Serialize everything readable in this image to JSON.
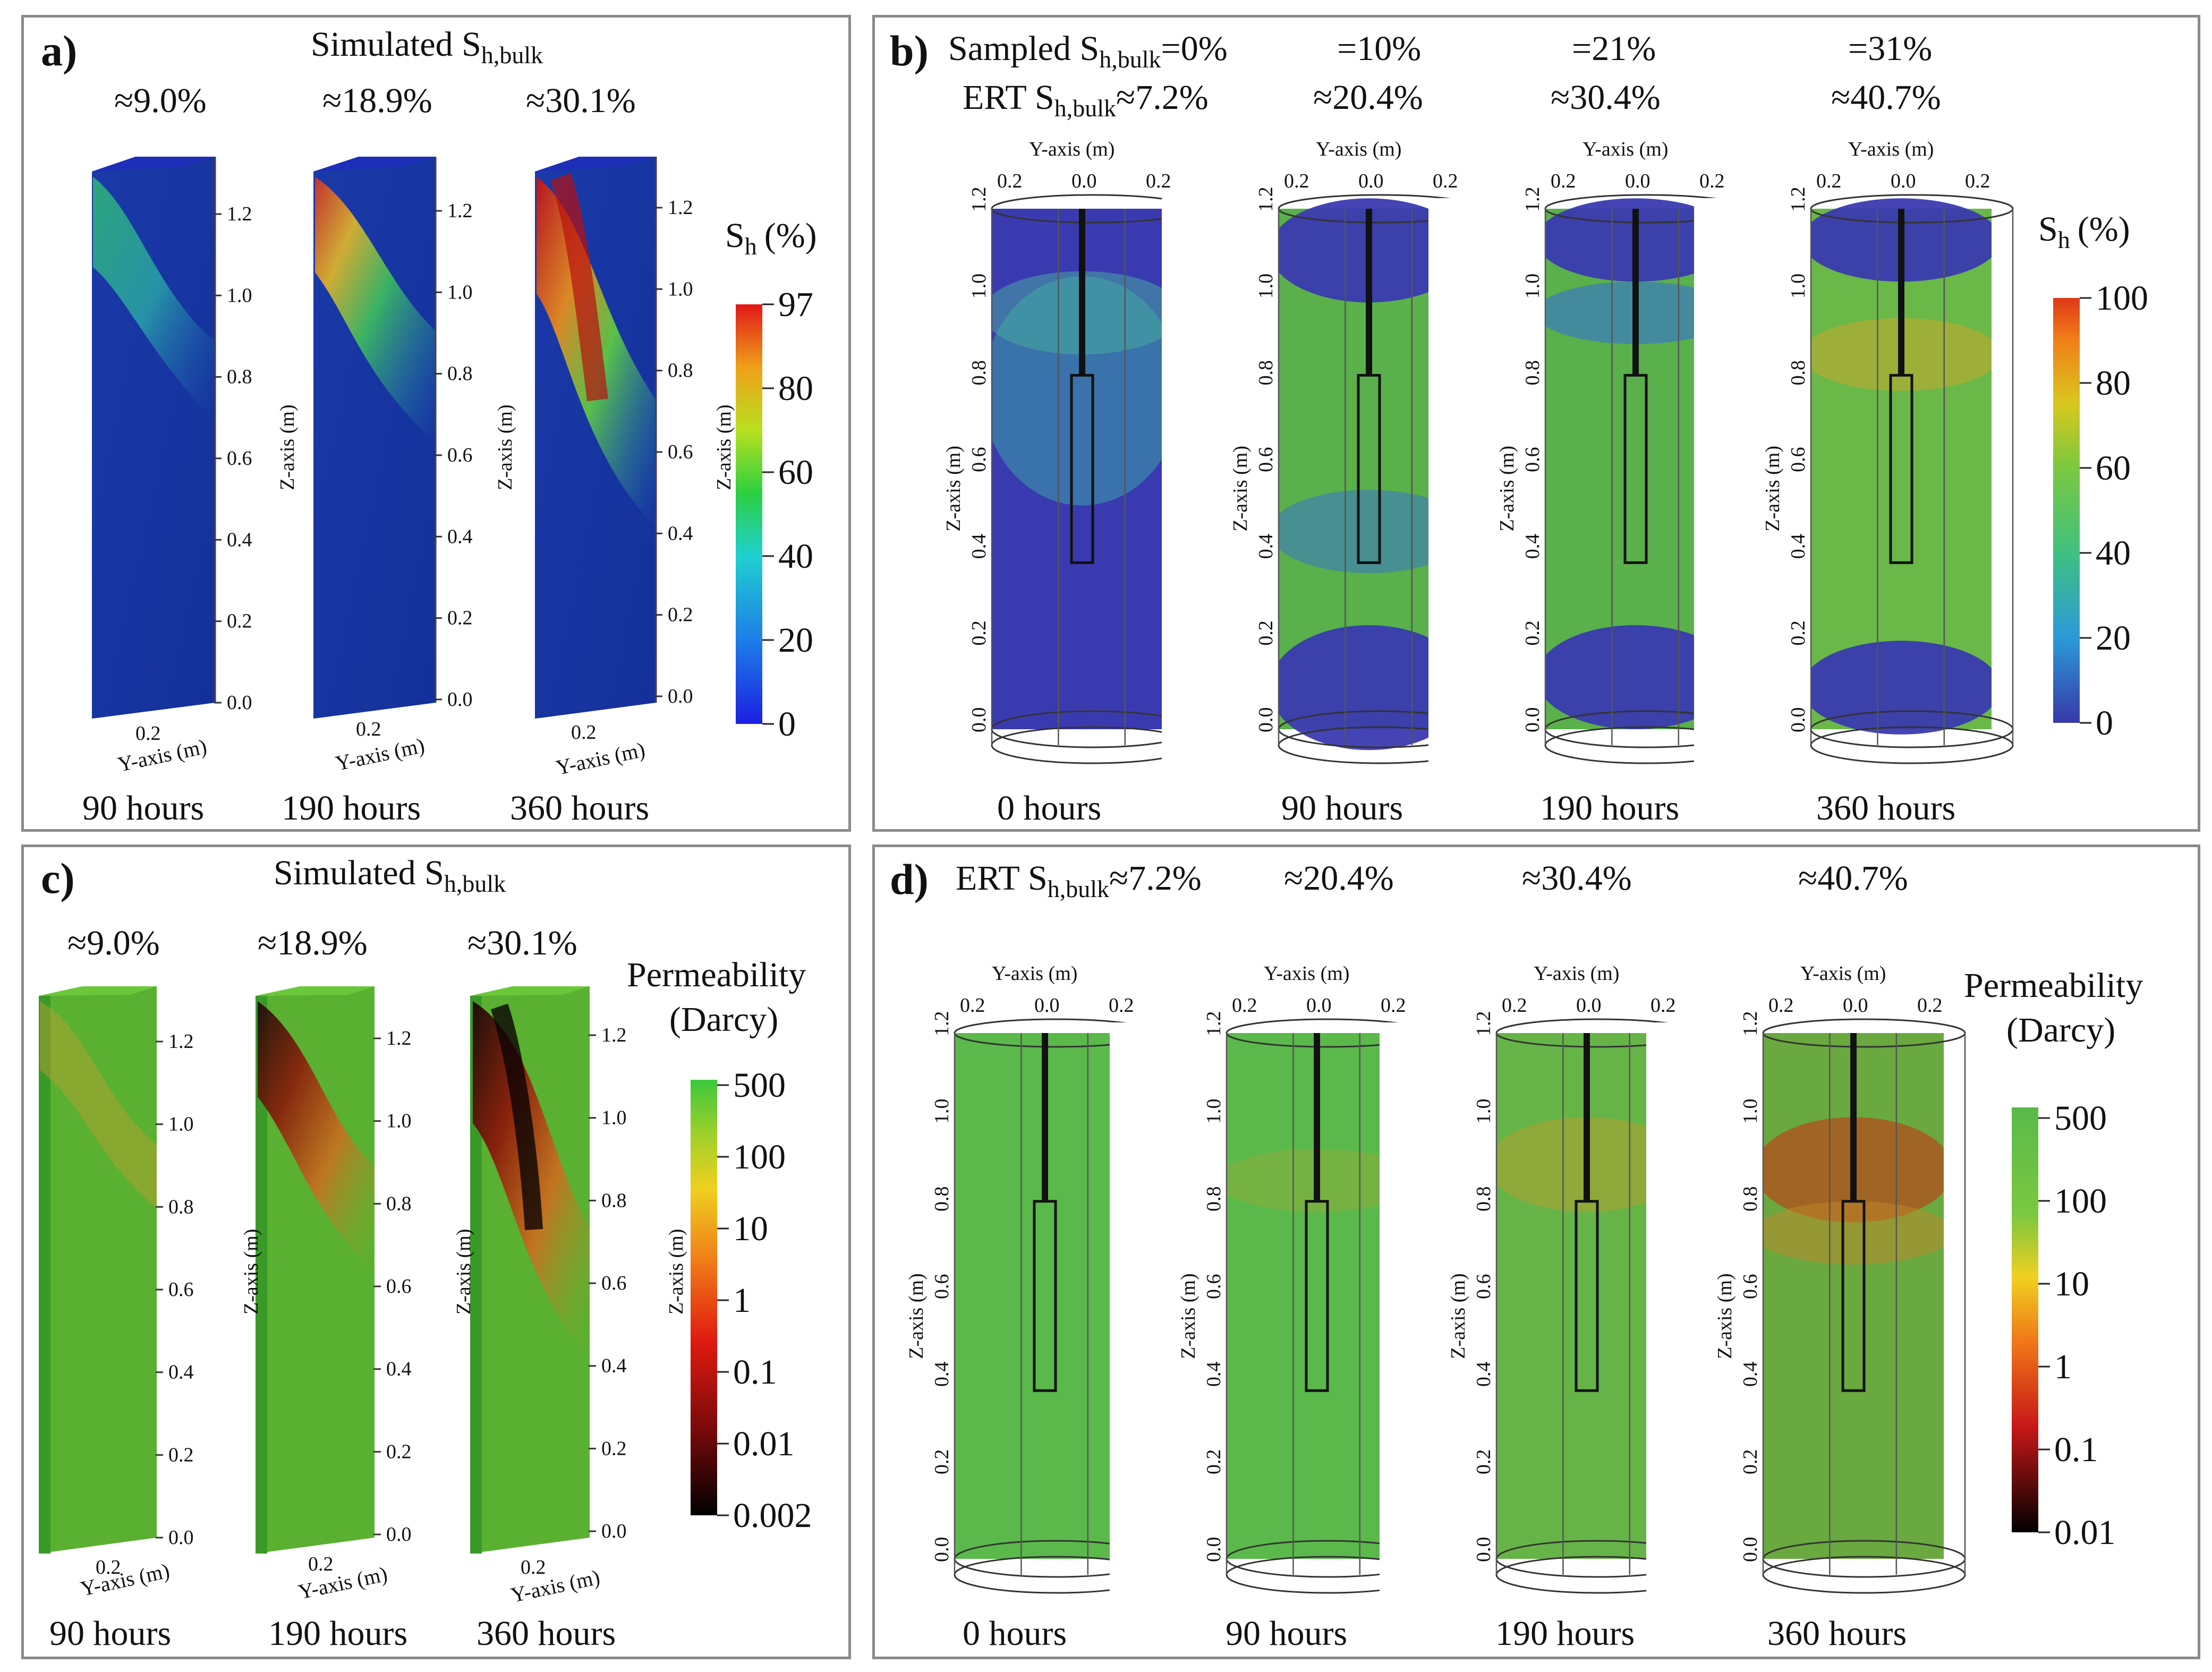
{
  "panels": {
    "a": {
      "letter": "a)",
      "title_main": "Simulated S",
      "title_sub": "h,bulk",
      "saturations": [
        "≈9.0%",
        "≈18.9%",
        "≈30.1%"
      ],
      "times": [
        "90 hours",
        "190 hours",
        "360 hours"
      ],
      "z_axis_label": "Z-axis (m)",
      "y_axis_label": "Y-axis (m)",
      "y_tick": "0.2",
      "z_ticks": [
        "0.0",
        "0.2",
        "0.4",
        "0.6",
        "0.8",
        "1.0",
        "1.2"
      ],
      "colorbar": {
        "title_main": "S",
        "title_sub": "h",
        "title_unit": "(%)",
        "ticks": [
          "97",
          "80",
          "60",
          "40",
          "20",
          "0"
        ]
      }
    },
    "b": {
      "letter": "b)",
      "sampled_label_main": "Sampled S",
      "sampled_label_sub": "h,bulk",
      "sampled_values": [
        "=0%",
        "=10%",
        "=21%",
        "=31%"
      ],
      "ert_label_main": "ERT S",
      "ert_label_sub": "h,bulk",
      "ert_values": [
        "≈7.2%",
        "≈20.4%",
        "≈30.4%",
        "≈40.7%"
      ],
      "times": [
        "0 hours",
        "90 hours",
        "190 hours",
        "360 hours"
      ],
      "z_axis_label": "Z-axis (m)",
      "y_axis_label": "Y-axis (m)",
      "y_ticks": [
        "0.2",
        "0.0",
        "0.2"
      ],
      "z_ticks": [
        "0.0",
        "0.2",
        "0.4",
        "0.6",
        "0.8",
        "1.0",
        "1.2"
      ],
      "colorbar": {
        "title_main": "S",
        "title_sub": "h",
        "title_unit": "(%)",
        "ticks": [
          "100",
          "80",
          "60",
          "40",
          "20",
          "0"
        ]
      }
    },
    "c": {
      "letter": "c)",
      "title_main": "Simulated S",
      "title_sub": "h,bulk",
      "saturations": [
        "≈9.0%",
        "≈18.9%",
        "≈30.1%"
      ],
      "times": [
        "90 hours",
        "190 hours",
        "360 hours"
      ],
      "z_axis_label": "Z-axis (m)",
      "y_axis_label": "Y-axis (m)",
      "y_tick": "0.2",
      "z_ticks": [
        "0.0",
        "0.2",
        "0.4",
        "0.6",
        "0.8",
        "1.0",
        "1.2"
      ],
      "colorbar": {
        "title_line1": "Permeability",
        "title_line2": "(Darcy)",
        "ticks": [
          "500",
          "100",
          "10",
          "1",
          "0.1",
          "0.01",
          "0.002"
        ]
      }
    },
    "d": {
      "letter": "d)",
      "ert_label_main": "ERT S",
      "ert_label_sub": "h,bulk",
      "ert_values": [
        "≈7.2%",
        "≈20.4%",
        "≈30.4%",
        "≈40.7%"
      ],
      "times": [
        "0 hours",
        "90 hours",
        "190 hours",
        "360 hours"
      ],
      "z_axis_label": "Z-axis (m)",
      "y_axis_label": "Y-axis (m)",
      "y_ticks": [
        "0.2",
        "0.0",
        "0.2"
      ],
      "z_ticks": [
        "0.0",
        "0.2",
        "0.4",
        "0.6",
        "0.8",
        "1.0",
        "1.2"
      ],
      "colorbar": {
        "title_line1": "Permeability",
        "title_line2": "(Darcy)",
        "ticks": [
          "500",
          "100",
          "10",
          "1",
          "0.1",
          "0.01"
        ]
      }
    }
  },
  "colors": {
    "sh_scale": [
      "#1c1fa8",
      "#1d6fe0",
      "#20c8d8",
      "#28c83c",
      "#a8d820",
      "#f0d020",
      "#f08018",
      "#d81818"
    ],
    "perm_scale": [
      "#000000",
      "#7a0a0a",
      "#e01a10",
      "#f07a18",
      "#f0d020",
      "#9ad02a",
      "#3cc83c"
    ],
    "ert_blue": "#3a3ab0",
    "ert_green": "#5ab94a",
    "panel_border": "#8a8a8a"
  }
}
